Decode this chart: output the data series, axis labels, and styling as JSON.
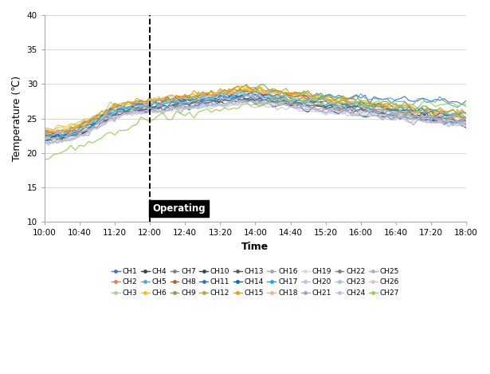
{
  "title": "",
  "xlabel": "Time",
  "ylabel": "Temperature (℃)",
  "ylim": [
    10,
    40
  ],
  "yticks": [
    10,
    15,
    20,
    25,
    30,
    35,
    40
  ],
  "xlim": [
    0,
    480
  ],
  "xtick_positions": [
    0,
    40,
    80,
    120,
    160,
    200,
    240,
    280,
    320,
    360,
    400,
    440,
    480
  ],
  "xtick_labels": [
    "10:00",
    "10:40",
    "11:20",
    "12:00",
    "12:40",
    "13:20",
    "14:00",
    "14:40",
    "15:20",
    "16:00",
    "16:40",
    "17:20",
    "18:00"
  ],
  "operating_x": 120,
  "operating_label": "Operating",
  "channel_colors": {
    "CH1": "#4472c4",
    "CH2": "#ed7d31",
    "CH3": "#a9d18e",
    "CH4": "#404040",
    "CH5": "#4ea6dc",
    "CH6": "#ffc000",
    "CH7": "#808080",
    "CH8": "#c55a11",
    "CH9": "#70ad47",
    "CH10": "#264478",
    "CH11": "#2e75b6",
    "CH12": "#c9a227",
    "CH13": "#595959",
    "CH14": "#0070c0",
    "CH15": "#e2a400",
    "CH16": "#a6a6a6",
    "CH17": "#00b0f0",
    "CH18": "#f4b183",
    "CH19": "#d6dce4",
    "CH20": "#c9b9d8",
    "CH21": "#8ea9db",
    "CH22": "#7f7f7f",
    "CH23": "#9dc3e6",
    "CH24": "#c9b9d8",
    "CH25": "#b0b0b0",
    "CH26": "#c8c8c8",
    "CH27": "#92d050"
  },
  "background_color": "#ffffff",
  "grid_color": "#d0d0d0",
  "legend_rows": [
    [
      "CH1",
      "CH2",
      "CH3",
      "CH4",
      "CH5",
      "CH6",
      "CH7",
      "CH8",
      "CH9"
    ],
    [
      "CH10",
      "CH11",
      "CH12",
      "CH13",
      "CH14",
      "CH15",
      "CH16",
      "CH17",
      "CH18"
    ],
    [
      "CH19",
      "CH20",
      "CH21",
      "CH22",
      "CH23",
      "CH24",
      "CH25",
      "CH26",
      "CH27"
    ]
  ]
}
